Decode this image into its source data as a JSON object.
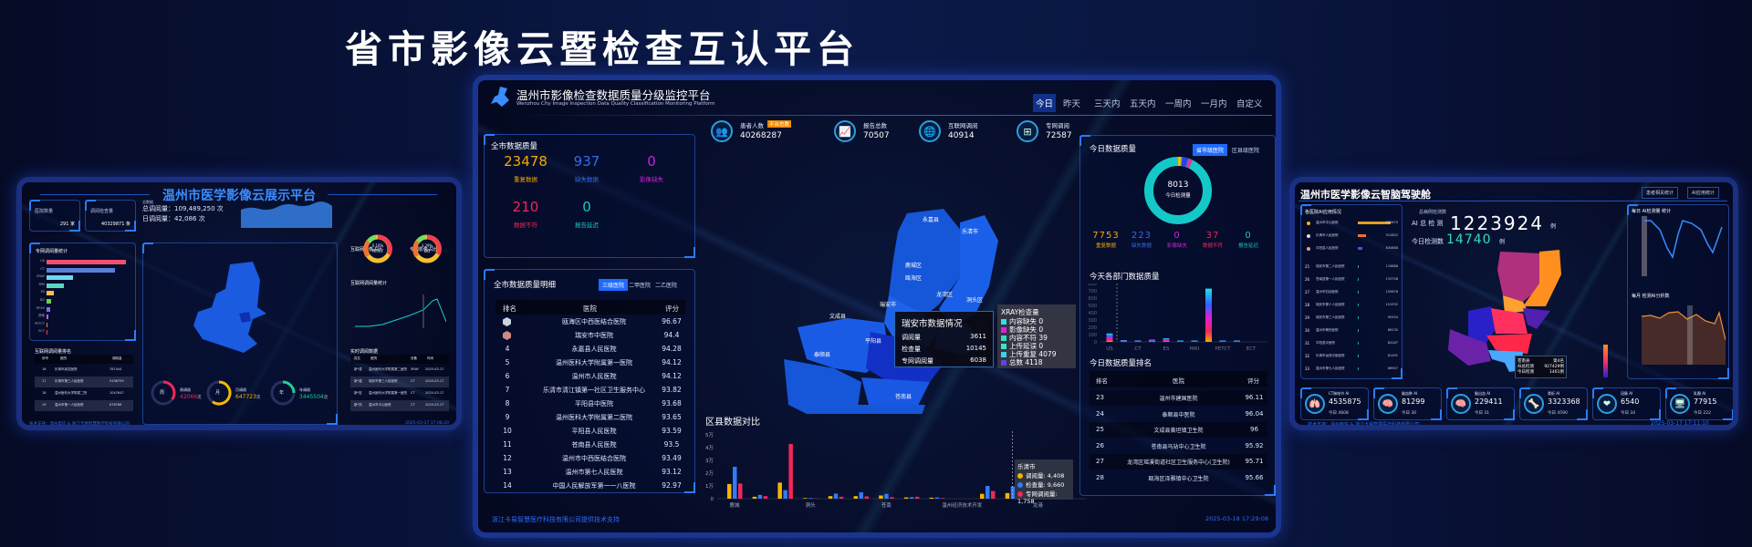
{
  "main_title": "省市影像云暨检查互认平台",
  "center": {
    "title": "温州市影像检查数据质量分级监控平台",
    "subtitle": "Wenzhou City Image Inspection Data Quality Classification Monitoring Platform",
    "time_tabs": [
      "今日",
      "昨天",
      "三天内",
      "五天内",
      "一周内",
      "一月内",
      "自定义"
    ],
    "active_tab": "今日",
    "city_quality": {
      "title": "全市数据质量",
      "items": [
        {
          "value": "23478",
          "label": "重复数据",
          "color": "#f5a800"
        },
        {
          "value": "937",
          "label": "缺失数据",
          "color": "#2f6cf0"
        },
        {
          "value": "0",
          "label": "影像缺失",
          "color": "#d020e0"
        },
        {
          "value": "210",
          "label": "数据不符",
          "color": "#f0285a"
        },
        {
          "value": "0",
          "label": "报告延迟",
          "color": "#14c8c0"
        }
      ]
    },
    "stats": [
      {
        "icon": "patients-icon",
        "label": "患者人数",
        "badge": "平台总数",
        "value": "40268287"
      },
      {
        "icon": "report-icon",
        "label": "报告总数",
        "value": "70507"
      },
      {
        "icon": "globe-icon",
        "label": "互联网调阅",
        "value": "40914"
      },
      {
        "icon": "network-icon",
        "label": "专网调阅",
        "value": "72587"
      }
    ],
    "detail": {
      "title": "全市数据质量明细",
      "filters": [
        "三级医院",
        "二甲医院",
        "二乙医院"
      ],
      "active_filter": "三级医院",
      "columns": [
        "排名",
        "医院",
        "评分"
      ],
      "rows": [
        [
          "2",
          "瓯海区中西医结合医院",
          "96.67"
        ],
        [
          "3",
          "瑞安市中医院",
          "94.4"
        ],
        [
          "4",
          "永嘉县人民医院",
          "94.28"
        ],
        [
          "5",
          "温州医科大学附属第一医院",
          "94.12"
        ],
        [
          "6",
          "温州市人民医院",
          "94.12"
        ],
        [
          "7",
          "乐清市清江镇第一社区卫生服务中心",
          "93.82"
        ],
        [
          "8",
          "平阳县中医院",
          "93.68"
        ],
        [
          "9",
          "温州医科大学附属第二医院",
          "93.65"
        ],
        [
          "10",
          "平阳县人民医院",
          "93.59"
        ],
        [
          "11",
          "苍南县人民医院",
          "93.5"
        ],
        [
          "12",
          "温州市中西医结合医院",
          "93.49"
        ],
        [
          "13",
          "温州市第七人民医院",
          "93.12"
        ],
        [
          "14",
          "中国人民解放军第一一八医院",
          "92.97"
        ]
      ]
    },
    "footer_left": "浙江卡易智慧医疗科技有限公司提供技术支持",
    "footer_right": "2025-03-18 17:29:08",
    "map_labels": [
      "永嘉县",
      "乐清市",
      "鹿城区",
      "瓯海区",
      "龙湾区",
      "洞头区",
      "瑞安市",
      "文成县",
      "泰顺县",
      "平阳县",
      "苍南县"
    ],
    "map_tooltip": {
      "title": "瑞安市数据情况",
      "rows": [
        [
          "调阅量",
          "3611"
        ],
        [
          "检查量",
          "10145"
        ],
        [
          "专网调阅量",
          "6038"
        ]
      ]
    },
    "xray_tooltip": {
      "title": "XRAY检查量",
      "items": [
        {
          "label": "内容缺失",
          "value": "0",
          "color": "#2ee0e0"
        },
        {
          "label": "影像缺失",
          "value": "0",
          "color": "#e020e0"
        },
        {
          "label": "内容不符",
          "value": "39",
          "color": "#2ee0c0"
        },
        {
          "label": "上传延误",
          "value": "0",
          "color": "#40e0d0"
        },
        {
          "label": "上传重复",
          "value": "4079",
          "color": "#40d0e0"
        },
        {
          "label": "总数",
          "value": "4118",
          "color": "#6040f0"
        }
      ]
    },
    "today_quality": {
      "title": "今日数据质量",
      "toggles": [
        "省市级医院",
        "区县级医院"
      ],
      "active_toggle": "省市级医院",
      "total": "8013",
      "total_label": "今日检测量",
      "items": [
        {
          "value": "7753",
          "label": "重复数据",
          "color": "#f5a800"
        },
        {
          "value": "223",
          "label": "缺失数据",
          "color": "#2f6cf0"
        },
        {
          "value": "0",
          "label": "影像缺失",
          "color": "#d020e0"
        },
        {
          "value": "37",
          "label": "数据不符",
          "color": "#f0285a"
        },
        {
          "value": "0",
          "label": "报告延迟",
          "color": "#14c8c0"
        }
      ],
      "ring_color": "#14c8c8"
    },
    "dept_title": "今天各部门数据质量",
    "ranking": {
      "title": "今日数据质量排名",
      "columns": [
        "排名",
        "医院",
        "评分"
      ],
      "rows": [
        [
          "23",
          "温州市建国医院",
          "96.11"
        ],
        [
          "24",
          "泰顺县中医院",
          "96.04"
        ],
        [
          "25",
          "文成县黄坦镇卫生院",
          "96"
        ],
        [
          "26",
          "苍南县马站中心卫生院",
          "95.92"
        ],
        [
          "27",
          "龙湾区瑶溪街道社区卫生服务中心(卫生院)",
          "95.71"
        ],
        [
          "28",
          "瓯海区泽雅镇中心卫生院",
          "95.66"
        ]
      ]
    },
    "district_title": "区县数据对比",
    "district_tooltip": {
      "title": "乐清市",
      "rows": [
        [
          "调阅量",
          "4,408"
        ],
        [
          "检查量",
          "9,660"
        ],
        [
          "专网调阅量",
          "1,758"
        ]
      ]
    }
  },
  "chart_data": [
    {
      "type": "bar",
      "title": "区县数据对比",
      "categories": [
        "鹿城",
        "",
        "",
        "洞头",
        "",
        "",
        "苍南",
        "",
        "",
        "温州经济技术开发",
        "",
        "乐清市",
        "龙港"
      ],
      "axis_labels": [
        "鹿城",
        "洞头",
        "苍南",
        "温州经济技术开发",
        "龙港"
      ],
      "yticks": [
        "0",
        "1万",
        "2万",
        "3万",
        "4万",
        "5万"
      ],
      "ylim": [
        0,
        50000
      ],
      "series": [
        {
          "name": "调阅量",
          "color": "#f5b400",
          "values": [
            11500,
            1500,
            12600,
            500,
            2000,
            2000,
            2500,
            1000,
            800,
            0,
            3800,
            4408,
            0
          ]
        },
        {
          "name": "检查量",
          "color": "#2f7cf6",
          "values": [
            25000,
            3000,
            6700,
            500,
            4000,
            5000,
            3800,
            1200,
            1000,
            0,
            10000,
            9660,
            0
          ]
        },
        {
          "name": "专网调阅量",
          "color": "#f0285a",
          "values": [
            11900,
            2000,
            42900,
            200,
            1500,
            1800,
            1200,
            1500,
            500,
            0,
            6000,
            1758,
            0
          ]
        }
      ]
    },
    {
      "type": "bar",
      "title": "今天各部门数据质量",
      "categories": [
        "US",
        "",
        "CT",
        "",
        "ES",
        "",
        "MRI",
        "",
        "PETCT",
        "",
        "ECT"
      ],
      "axis_labels": [
        "US",
        "CT",
        "ES",
        "MRI",
        "PETCT",
        "ECT"
      ],
      "yticks": [
        "0",
        "100",
        "200",
        "300",
        "400",
        "500",
        "600",
        "700",
        "800"
      ],
      "ylim": [
        0,
        800
      ],
      "values": [
        115,
        25,
        20,
        30,
        50,
        20,
        20,
        730,
        20,
        20,
        0
      ]
    }
  ],
  "left_panel": {
    "title": "温州市医学影像云展示平台",
    "cards": [
      {
        "label": "医院数量",
        "value": "291 家"
      },
      {
        "label": "调阅检查量",
        "value": "40329871 条"
      }
    ],
    "totals_label": "总数据",
    "total_views": "总调阅量：109,489,250 次",
    "daily_views": "日调阅量：42,086 次",
    "bar_title": "专网调阅量统计",
    "bars": [
      {
        "label": "US",
        "value": 100,
        "color": "#f0506e"
      },
      {
        "label": "CT",
        "value": 86,
        "color": "#5b7fd6"
      },
      {
        "label": "XRAY",
        "value": 33,
        "color": "#6fd6f0"
      },
      {
        "label": "MRI",
        "value": 22,
        "color": "#5dd6c0"
      },
      {
        "label": "ES",
        "value": 9,
        "color": "#f5c04a"
      },
      {
        "label": "DG",
        "value": 6,
        "color": "#6cd04a"
      },
      {
        "label": "RYXX",
        "value": 5,
        "color": "#7a6cf0"
      },
      {
        "label": "其他",
        "value": 2,
        "color": "#c060f0"
      },
      {
        "label": "PETCT",
        "value": 1,
        "color": "#f08040"
      },
      {
        "label": "ECT",
        "value": 1,
        "color": "#f04060"
      }
    ],
    "donut_titles": [
      "互联网影像占比",
      "专网影像占比"
    ],
    "donuts": [
      {
        "pct": "0.16%",
        "label": "PETCT"
      },
      {
        "pct": "3.29%",
        "label": "DG"
      }
    ],
    "line_title": "互联网调阅量统计",
    "rank_title": "互联网调阅量排名",
    "rank_columns": [
      "序号",
      "医院",
      "调阅量"
    ],
    "rank_rows": [
      [
        "16",
        "乐清市疾控医院",
        "787444"
      ],
      [
        "17",
        "乐清市第三人民医院",
        "5198759"
      ],
      [
        "18",
        "温州医科大学附属二院",
        "1047647"
      ],
      [
        "19",
        "温州市第一人民医院",
        "878786"
      ]
    ],
    "live_title": "实时调阅数据",
    "live_columns": [
      "姓名",
      "医院",
      "设备",
      "时间"
    ],
    "live_rows": [
      [
        "新*重",
        "温州医科大学附属第二医院",
        "XRAY",
        "2025-03-17"
      ],
      [
        "新*重",
        "瑞安市第三人民医院",
        "CT",
        "2025-03-17"
      ],
      [
        "新*宏",
        "温州医科大学附属第一医院",
        "CT",
        "2025-03-17"
      ],
      [
        "新*凯",
        "温州市中心医院",
        "CT",
        "2025-03-17"
      ]
    ],
    "gauges": [
      {
        "char": "周",
        "label": "周调阅",
        "value": "42066",
        "unit": "次",
        "color": "#f0285a",
        "pct": 0.35
      },
      {
        "char": "月",
        "label": "月调阅",
        "value": "647723",
        "unit": "次",
        "color": "#f5b800",
        "pct": 0.6
      },
      {
        "char": "年",
        "label": "年调阅",
        "value": "3445504",
        "unit": "次",
        "color": "#20d090",
        "pct": 0.25
      }
    ],
    "footer_left": "技术支持：温州电信 & 浙江卡易智慧医疗科技有限公司",
    "footer_right": "2025-03-17 17:08:20"
  },
  "right_panel": {
    "title": "温州市医学影像云智脑驾驶舱",
    "buttons": [
      "患者相关统计",
      "AI应用统计"
    ],
    "list_title": "各医院AI应用情况",
    "list": [
      [
        "",
        "温州市中心医院",
        "960670"
      ],
      [
        "",
        "乐清市人民医院",
        "912852"
      ],
      [
        "",
        "平阳县人民医院",
        "830888"
      ],
      [
        "25",
        "瑞安市第二人民医院",
        "134886"
      ],
      [
        "26",
        "苍南县第一人民医院",
        "133758"
      ],
      [
        "27",
        "温州市妇幼医院",
        "105676"
      ],
      [
        "28",
        "瑞安市第十人民医院",
        "101932"
      ],
      [
        "29",
        "瑞安市第三人民医院",
        "90434"
      ],
      [
        "30",
        "温州市骨伤医院",
        "86135"
      ],
      [
        "31",
        "平阳县中医院",
        "84187"
      ],
      [
        "32",
        "乐清市龙西中医医院",
        "81491"
      ],
      [
        "33",
        "温州市第七人民医院",
        "68907"
      ]
    ],
    "total_label": "总病例检测数",
    "ai_total_label": "AI 总 检 测",
    "ai_total": "1223924",
    "ai_total_unit": "例",
    "today_label": "今日检测数",
    "today_value": "14740",
    "today_unit": "例",
    "daily_title": "每日 AI检测量 统计",
    "monthly_title": "每月 检测AI分析数",
    "map_tooltip": {
      "name": "苍南县",
      "rank": "第4名",
      "rows": [
        [
          "AI总检测",
          "927429例"
        ],
        [
          "今日检测",
          "1461例"
        ]
      ]
    },
    "cards": [
      {
        "icon": "lungs-icon",
        "label": "CT肺结节 AI",
        "value": "4535875",
        "today": "今日 4608"
      },
      {
        "icon": "brain-icon",
        "label": "脑血肿 AI",
        "value": "81299",
        "today": "今日 30"
      },
      {
        "icon": "brain-icon",
        "label": "脑出血 AI",
        "value": "229411",
        "today": "今日 31"
      },
      {
        "icon": "skeleton-icon",
        "label": "骨折 AI",
        "value": "3323368",
        "today": "今日 4590"
      },
      {
        "icon": "heart-icon",
        "label": "冠脉 AI",
        "value": "6540",
        "today": "今日 34"
      },
      {
        "icon": "breast-scan-icon",
        "label": "乳腺 AI",
        "value": "77915",
        "today": "今日 222"
      }
    ],
    "footer_left": "技术支持：温州电信 & 浙江卡易智慧医疗科技有限公司",
    "footer_right": "2025-03-17 17:11:10"
  }
}
